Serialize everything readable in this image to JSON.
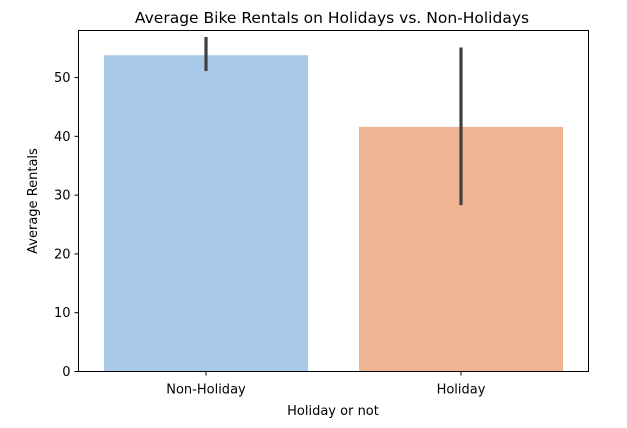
{
  "chart_data": {
    "type": "bar",
    "title": "Average Bike Rentals on Holidays vs. Non-Holidays",
    "xlabel": "Holiday or not",
    "ylabel": "Average Rentals",
    "categories": [
      "Non-Holiday",
      "Holiday"
    ],
    "values": [
      53.8,
      41.6
    ],
    "error_bars": [
      {
        "low": 51.1,
        "high": 56.9
      },
      {
        "low": 28.3,
        "high": 55.1
      }
    ],
    "colors": [
      "#a9c9e9",
      "#efb593"
    ],
    "error_color": "#404040",
    "ylim": [
      0,
      58
    ],
    "yticks": [
      0,
      10,
      20,
      30,
      40,
      50
    ],
    "grid": false,
    "legend": "none"
  }
}
